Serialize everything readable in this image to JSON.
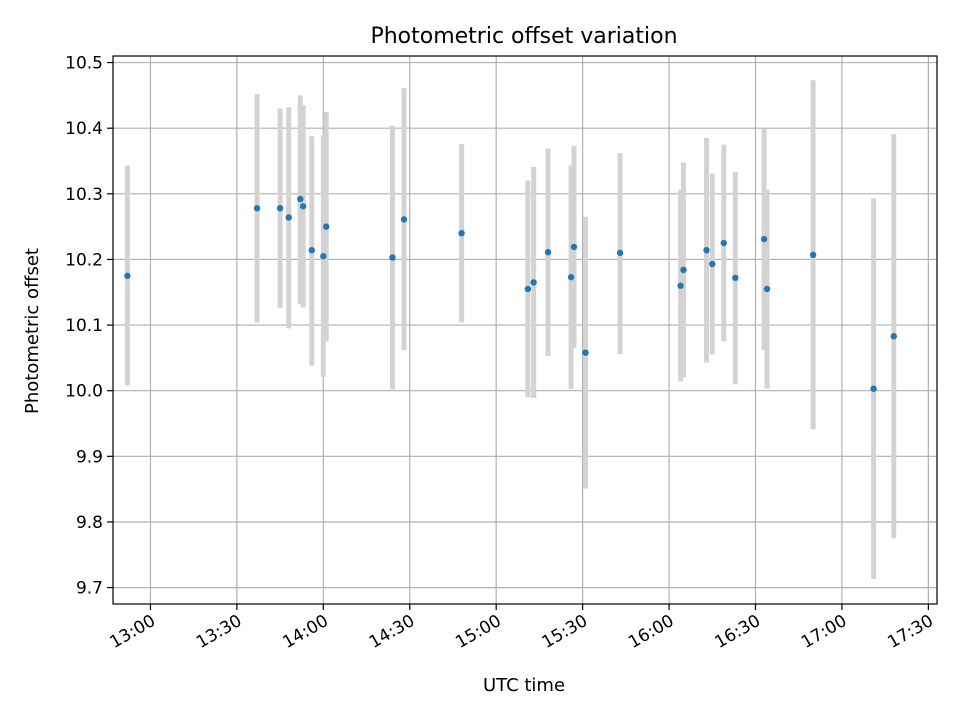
{
  "chart_data": {
    "type": "scatter",
    "title": "Photometric offset variation",
    "xlabel": "UTC time",
    "ylabel": "Photometric offset",
    "grid": true,
    "xlim": [
      "12:47",
      "17:33"
    ],
    "ylim": [
      9.675,
      10.51
    ],
    "x_ticks": [
      "13:00",
      "13:30",
      "14:00",
      "14:30",
      "15:00",
      "15:30",
      "16:00",
      "16:30",
      "17:00",
      "17:30"
    ],
    "y_ticks": [
      "9.7",
      "9.8",
      "9.9",
      "10.0",
      "10.1",
      "10.2",
      "10.3",
      "10.4",
      "10.5"
    ],
    "colors": {
      "point": "#1f77b4",
      "errorbar": "#d3d3d3",
      "grid": "#b0b0b0"
    },
    "points": [
      {
        "x": "12:52",
        "y": 10.175,
        "y_low": 10.008,
        "y_high": 10.343
      },
      {
        "x": "13:37",
        "y": 10.278,
        "y_low": 10.104,
        "y_high": 10.452
      },
      {
        "x": "13:45",
        "y": 10.278,
        "y_low": 10.126,
        "y_high": 10.43
      },
      {
        "x": "13:48",
        "y": 10.264,
        "y_low": 10.095,
        "y_high": 10.432
      },
      {
        "x": "13:52",
        "y": 10.292,
        "y_low": 10.132,
        "y_high": 10.45
      },
      {
        "x": "13:53",
        "y": 10.281,
        "y_low": 10.127,
        "y_high": 10.435
      },
      {
        "x": "13:56",
        "y": 10.214,
        "y_low": 10.038,
        "y_high": 10.388
      },
      {
        "x": "14:00",
        "y": 10.205,
        "y_low": 10.021,
        "y_high": 10.389
      },
      {
        "x": "14:01",
        "y": 10.25,
        "y_low": 10.075,
        "y_high": 10.425
      },
      {
        "x": "14:24",
        "y": 10.203,
        "y_low": 10.002,
        "y_high": 10.404
      },
      {
        "x": "14:28",
        "y": 10.261,
        "y_low": 10.062,
        "y_high": 10.461
      },
      {
        "x": "14:48",
        "y": 10.24,
        "y_low": 10.104,
        "y_high": 10.376
      },
      {
        "x": "15:11",
        "y": 10.155,
        "y_low": 9.99,
        "y_high": 10.32
      },
      {
        "x": "15:13",
        "y": 10.165,
        "y_low": 9.989,
        "y_high": 10.341
      },
      {
        "x": "15:18",
        "y": 10.211,
        "y_low": 10.053,
        "y_high": 10.369
      },
      {
        "x": "15:26",
        "y": 10.173,
        "y_low": 10.003,
        "y_high": 10.343
      },
      {
        "x": "15:27",
        "y": 10.219,
        "y_low": 10.065,
        "y_high": 10.373
      },
      {
        "x": "15:31",
        "y": 10.058,
        "y_low": 9.851,
        "y_high": 10.265
      },
      {
        "x": "15:43",
        "y": 10.21,
        "y_low": 10.056,
        "y_high": 10.362
      },
      {
        "x": "16:04",
        "y": 10.16,
        "y_low": 10.014,
        "y_high": 10.306
      },
      {
        "x": "16:05",
        "y": 10.184,
        "y_low": 10.02,
        "y_high": 10.348
      },
      {
        "x": "16:13",
        "y": 10.214,
        "y_low": 10.043,
        "y_high": 10.385
      },
      {
        "x": "16:15",
        "y": 10.193,
        "y_low": 10.055,
        "y_high": 10.331
      },
      {
        "x": "16:19",
        "y": 10.225,
        "y_low": 10.075,
        "y_high": 10.375
      },
      {
        "x": "16:23",
        "y": 10.172,
        "y_low": 10.01,
        "y_high": 10.333
      },
      {
        "x": "16:33",
        "y": 10.231,
        "y_low": 10.062,
        "y_high": 10.399
      },
      {
        "x": "16:34",
        "y": 10.155,
        "y_low": 10.003,
        "y_high": 10.306
      },
      {
        "x": "16:50",
        "y": 10.207,
        "y_low": 9.941,
        "y_high": 10.473
      },
      {
        "x": "17:11",
        "y": 10.003,
        "y_low": 9.713,
        "y_high": 10.293
      },
      {
        "x": "17:18",
        "y": 10.083,
        "y_low": 9.775,
        "y_high": 10.391
      }
    ]
  }
}
